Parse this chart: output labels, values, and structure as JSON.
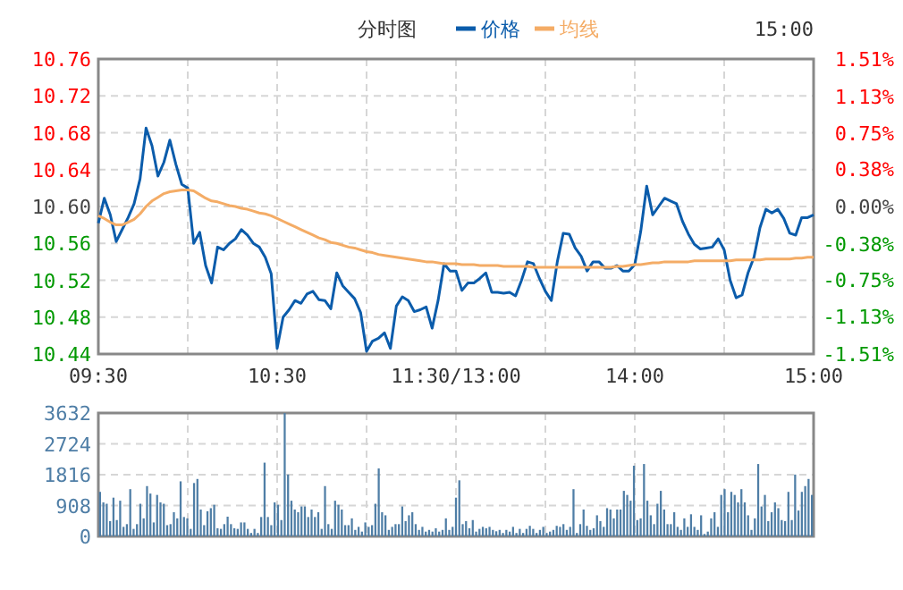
{
  "chart_data": [
    {
      "type": "line",
      "title": "分时图",
      "annotations": [
        "15:00"
      ],
      "legend": "top",
      "grid": true,
      "categories": [
        "09:30",
        null,
        null,
        null,
        null,
        null,
        null,
        null,
        null,
        null,
        null,
        null,
        null,
        null,
        null,
        null,
        null,
        null,
        null,
        null,
        null,
        null,
        null,
        null,
        null,
        null,
        null,
        null,
        null,
        null,
        "10:30",
        null,
        null,
        null,
        null,
        null,
        null,
        null,
        null,
        null,
        null,
        null,
        null,
        null,
        null,
        null,
        null,
        null,
        null,
        null,
        null,
        null,
        null,
        null,
        null,
        null,
        null,
        null,
        null,
        null,
        "11:30/13:00",
        null,
        null,
        null,
        null,
        null,
        null,
        null,
        null,
        null,
        null,
        null,
        null,
        null,
        null,
        null,
        null,
        null,
        null,
        null,
        null,
        null,
        null,
        null,
        null,
        null,
        null,
        null,
        null,
        null,
        "14:00",
        null,
        null,
        null,
        null,
        null,
        null,
        null,
        null,
        null,
        null,
        null,
        null,
        null,
        null,
        null,
        null,
        null,
        null,
        null,
        null,
        null,
        null,
        null,
        null,
        null,
        null,
        null,
        null,
        null,
        "15:00"
      ],
      "ylim": [
        10.44,
        10.76
      ],
      "yticks": [
        {
          "value": 10.44,
          "label": "10.44"
        },
        {
          "value": 10.48,
          "label": "10.48"
        },
        {
          "value": 10.52,
          "label": "10.52"
        },
        {
          "value": 10.56,
          "label": "10.56"
        },
        {
          "value": 10.6,
          "label": "10.60"
        },
        {
          "value": 10.64,
          "label": "10.64"
        },
        {
          "value": 10.68,
          "label": "10.68"
        },
        {
          "value": 10.72,
          "label": "10.72"
        },
        {
          "value": 10.76,
          "label": "10.76"
        }
      ],
      "y2lim": [
        -1.51,
        1.51
      ],
      "y2ticks": [
        {
          "value": 1.51,
          "label": "1.51%"
        },
        {
          "value": 1.13,
          "label": "1.13%"
        },
        {
          "value": 0.75,
          "label": "0.75%"
        },
        {
          "value": 0.38,
          "label": "0.38%"
        },
        {
          "value": 0,
          "label": "0.00%"
        },
        {
          "value": -0.38,
          "label": "-0.38%"
        },
        {
          "value": -0.75,
          "label": "-0.75%"
        },
        {
          "value": -1.13,
          "label": "-1.13%"
        },
        {
          "value": -1.51,
          "label": "-1.51%"
        }
      ],
      "series": [
        {
          "name": "价格",
          "color": "#0b5cab",
          "values": [
            10.582,
            10.609,
            10.591,
            10.562,
            10.575,
            10.588,
            10.603,
            10.63,
            10.685,
            10.666,
            10.633,
            10.648,
            10.672,
            10.646,
            10.624,
            10.62,
            10.56,
            10.572,
            10.536,
            10.517,
            10.556,
            10.553,
            10.56,
            10.565,
            10.575,
            10.569,
            10.56,
            10.556,
            10.545,
            10.527,
            10.446,
            10.48,
            10.488,
            10.498,
            10.495,
            10.505,
            10.508,
            10.499,
            10.498,
            10.489,
            10.528,
            10.514,
            10.507,
            10.5,
            10.485,
            10.443,
            10.454,
            10.457,
            10.463,
            10.446,
            10.492,
            10.502,
            10.498,
            10.486,
            10.488,
            10.491,
            10.468,
            10.498,
            10.538,
            10.53,
            10.53,
            10.509,
            10.517,
            10.517,
            10.522,
            10.528,
            10.507,
            10.507,
            10.506,
            10.507,
            10.503,
            10.52,
            10.54,
            10.538,
            10.522,
            10.508,
            10.498,
            10.54,
            10.571,
            10.57,
            10.555,
            10.546,
            10.53,
            10.54,
            10.54,
            10.533,
            10.533,
            10.536,
            10.53,
            10.53,
            10.537,
            10.573,
            10.622,
            10.591,
            10.6,
            10.609,
            10.606,
            10.603,
            10.584,
            10.57,
            10.559,
            10.554,
            10.555,
            10.556,
            10.565,
            10.553,
            10.52,
            10.501,
            10.504,
            10.528,
            10.545,
            10.577,
            10.597,
            10.593,
            10.597,
            10.587,
            10.571,
            10.569,
            10.588,
            10.588,
            10.591
          ]
        },
        {
          "name": "均线",
          "color": "#f4ac66",
          "values": [
            10.59,
            10.587,
            10.583,
            10.58,
            10.58,
            10.583,
            10.586,
            10.592,
            10.6,
            10.606,
            10.61,
            10.614,
            10.616,
            10.617,
            10.618,
            10.618,
            10.617,
            10.613,
            10.609,
            10.606,
            10.605,
            10.603,
            10.601,
            10.6,
            10.598,
            10.597,
            10.595,
            10.593,
            10.592,
            10.59,
            10.587,
            10.584,
            10.581,
            10.578,
            10.575,
            10.572,
            10.569,
            10.566,
            10.564,
            10.561,
            10.56,
            10.558,
            10.556,
            10.555,
            10.553,
            10.551,
            10.55,
            10.548,
            10.547,
            10.546,
            10.545,
            10.544,
            10.543,
            10.542,
            10.541,
            10.54,
            10.54,
            10.539,
            10.538,
            10.538,
            10.538,
            10.537,
            10.537,
            10.537,
            10.536,
            10.536,
            10.536,
            10.536,
            10.535,
            10.535,
            10.535,
            10.535,
            10.535,
            10.534,
            10.534,
            10.534,
            10.534,
            10.534,
            10.534,
            10.534,
            10.534,
            10.534,
            10.534,
            10.534,
            10.534,
            10.534,
            10.534,
            10.535,
            10.535,
            10.536,
            10.537,
            10.537,
            10.538,
            10.539,
            10.539,
            10.54,
            10.54,
            10.54,
            10.54,
            10.54,
            10.541,
            10.541,
            10.541,
            10.541,
            10.541,
            10.541,
            10.541,
            10.542,
            10.542,
            10.542,
            10.542,
            10.542,
            10.543,
            10.543,
            10.543,
            10.543,
            10.543,
            10.544,
            10.544,
            10.545,
            10.545
          ]
        }
      ]
    },
    {
      "type": "bar",
      "grid": true,
      "tick_labels": "y",
      "color": "#4f7ea6",
      "ylim": [
        0,
        3632
      ],
      "yticks": [
        0,
        908,
        1816,
        2724,
        3632
      ],
      "categories": [
        null,
        null,
        null,
        null,
        null,
        null,
        null,
        null,
        null,
        null,
        null,
        null,
        null,
        null,
        null,
        null,
        null,
        null,
        null,
        null,
        null,
        null,
        null,
        null,
        null,
        null,
        null,
        null,
        null,
        null,
        null,
        null,
        null,
        null,
        null,
        null,
        null,
        null,
        null,
        null,
        null,
        null,
        null,
        null,
        null,
        null,
        null,
        null,
        null,
        null,
        null,
        null,
        null,
        null,
        null,
        null,
        null,
        null,
        null,
        null,
        null,
        null,
        null,
        null,
        null,
        null,
        null,
        null,
        null,
        null,
        null,
        null,
        null,
        null,
        null,
        null,
        null,
        null,
        null,
        null,
        null,
        null,
        null,
        null,
        null,
        null,
        null,
        null,
        null,
        null,
        null,
        null,
        null,
        null,
        null,
        null,
        null,
        null,
        null,
        null,
        null,
        null,
        null,
        null,
        null,
        null,
        null,
        null,
        null,
        null,
        null,
        null,
        null,
        null,
        null,
        null,
        null,
        null,
        null,
        null,
        null,
        null,
        null,
        null,
        null,
        null,
        null,
        null,
        null,
        null,
        null,
        null,
        null,
        null,
        null,
        null,
        null,
        null,
        null,
        null,
        null,
        null,
        null,
        null,
        null,
        null,
        null,
        null,
        null,
        null,
        null,
        null,
        null,
        null,
        null,
        null,
        null,
        null,
        null,
        null,
        null,
        null,
        null,
        null,
        null,
        null,
        null,
        null,
        null,
        null,
        null,
        null,
        null,
        null,
        null,
        null,
        null,
        null,
        null,
        null,
        null,
        null,
        null,
        null,
        null,
        null,
        null,
        null,
        null,
        null,
        null,
        null,
        null,
        null,
        null,
        null,
        null,
        null,
        null,
        null,
        null,
        null,
        null,
        null,
        null,
        null,
        null,
        null,
        null,
        null,
        null,
        null,
        null
      ],
      "values": [
        1310,
        1000,
        960,
        450,
        1140,
        480,
        1050,
        280,
        360,
        1390,
        220,
        360,
        960,
        530,
        1480,
        1260,
        410,
        1220,
        1000,
        960,
        330,
        360,
        710,
        530,
        1620,
        570,
        530,
        220,
        1570,
        1690,
        790,
        330,
        740,
        830,
        930,
        240,
        220,
        360,
        580,
        360,
        240,
        220,
        410,
        410,
        220,
        100,
        220,
        100,
        570,
        2170,
        570,
        330,
        1000,
        930,
        480,
        3630,
        1820,
        1050,
        790,
        710,
        880,
        880,
        570,
        790,
        570,
        710,
        220,
        1480,
        360,
        220,
        1050,
        930,
        790,
        330,
        330,
        530,
        190,
        280,
        140,
        410,
        280,
        330,
        960,
        2000,
        710,
        620,
        190,
        280,
        360,
        360,
        880,
        450,
        620,
        710,
        360,
        190,
        280,
        140,
        190,
        140,
        240,
        140,
        190,
        530,
        190,
        280,
        1140,
        1650,
        360,
        450,
        240,
        480,
        140,
        220,
        280,
        240,
        280,
        190,
        150,
        190,
        100,
        190,
        140,
        280,
        100,
        220,
        100,
        220,
        310,
        220,
        100,
        190,
        280,
        100,
        140,
        190,
        310,
        280,
        360,
        190,
        280,
        1390,
        100,
        360,
        790,
        310,
        190,
        240,
        620,
        450,
        280,
        830,
        790,
        530,
        790,
        790,
        1340,
        1220,
        1050,
        2080,
        480,
        530,
        2130,
        1050,
        620,
        360,
        960,
        1340,
        790,
        360,
        360,
        710,
        280,
        190,
        530,
        280,
        650,
        280,
        190,
        620,
        70,
        140,
        530,
        710,
        280,
        1220,
        1390,
        710,
        1310,
        1220,
        1000,
        1390,
        1000,
        620,
        190,
        530,
        2130,
        880,
        1220,
        450,
        710,
        1000,
        830,
        480,
        450,
        1310,
        480,
        1820,
        760,
        1310,
        1480,
        1690,
        1220
      ]
    }
  ]
}
